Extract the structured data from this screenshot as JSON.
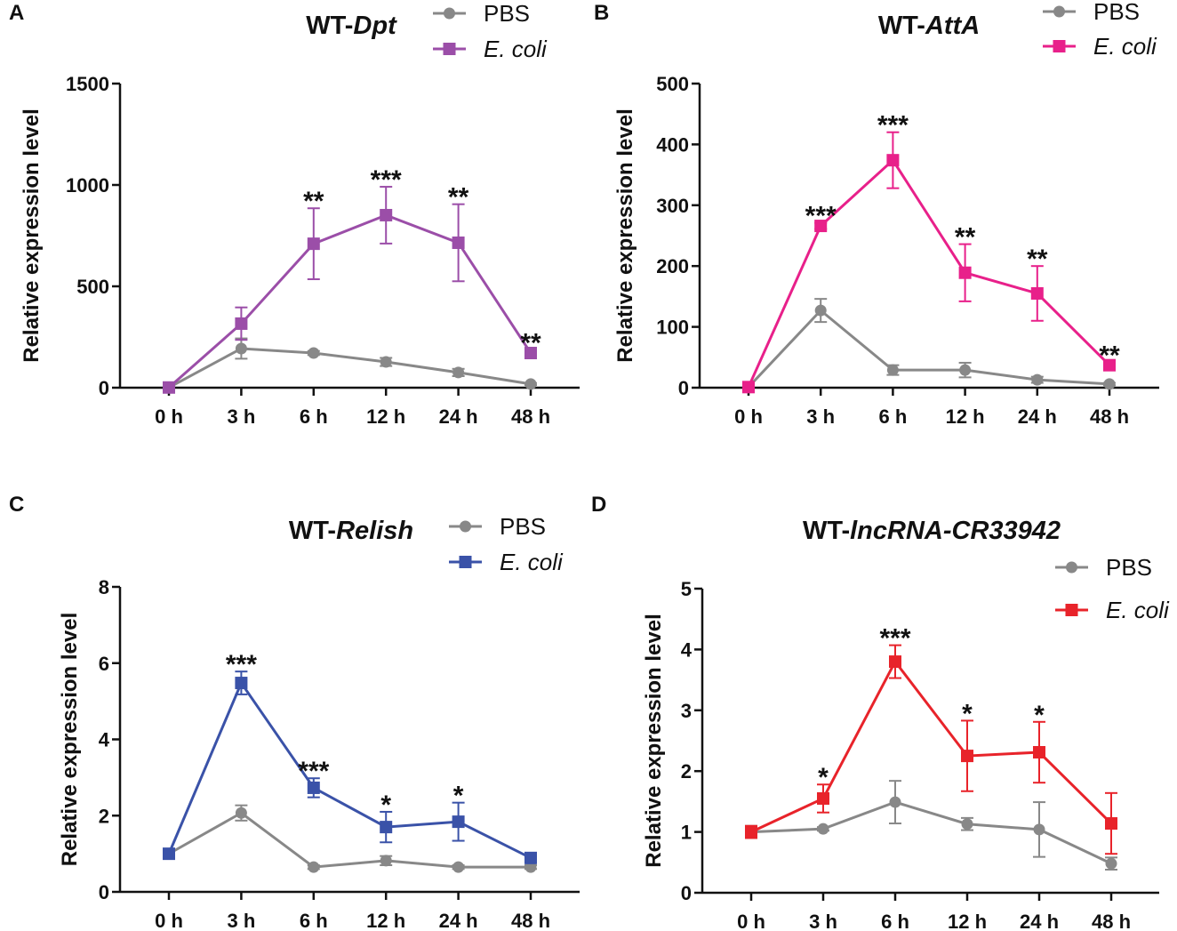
{
  "chart_data": [
    {
      "type": "line",
      "panel": "A",
      "title_prefix": "WT-",
      "title_gene": "Dpt",
      "ylabel": "Relative expression level",
      "ylim": [
        0,
        1500
      ],
      "yticks": [
        0,
        500,
        1000,
        1500
      ],
      "categories": [
        "0 h",
        "3 h",
        "6 h",
        "12 h",
        "24 h",
        "48 h"
      ],
      "series": [
        {
          "name": "PBS",
          "color": "#888888",
          "marker": "circle",
          "values": [
            1,
            193,
            171,
            127,
            75,
            18
          ],
          "errors": [
            0,
            50,
            10,
            20,
            18,
            5
          ]
        },
        {
          "name": "E. coli",
          "color": "#9b4ea8",
          "marker": "square",
          "values": [
            1,
            316,
            710,
            851,
            715,
            171
          ],
          "errors": [
            0,
            80,
            175,
            140,
            190,
            15
          ]
        }
      ],
      "significance": [
        "",
        "",
        "**",
        "***",
        "**",
        "**"
      ]
    },
    {
      "type": "line",
      "panel": "B",
      "title_prefix": "WT-",
      "title_gene": "AttA",
      "ylabel": "Relative expression level",
      "ylim": [
        0,
        500
      ],
      "yticks": [
        0,
        100,
        200,
        300,
        400,
        500
      ],
      "categories": [
        "0 h",
        "3 h",
        "6 h",
        "12 h",
        "24 h",
        "48 h"
      ],
      "series": [
        {
          "name": "PBS",
          "color": "#888888",
          "marker": "circle",
          "values": [
            1,
            127,
            29,
            29,
            13,
            6
          ],
          "errors": [
            0,
            19,
            8,
            12,
            5,
            2
          ]
        },
        {
          "name": "E. coli",
          "color": "#e8208a",
          "marker": "square",
          "values": [
            1,
            266,
            374,
            189,
            155,
            37
          ],
          "errors": [
            0,
            5,
            46,
            47,
            45,
            5
          ]
        }
      ],
      "significance": [
        "",
        "***",
        "***",
        "**",
        "**",
        "**"
      ]
    },
    {
      "type": "line",
      "panel": "C",
      "title_prefix": "WT-",
      "title_gene": "Relish",
      "ylabel": "Relative expression level",
      "ylim": [
        0,
        8
      ],
      "yticks": [
        0,
        2,
        4,
        6,
        8
      ],
      "categories": [
        "0 h",
        "3 h",
        "6 h",
        "12 h",
        "24 h",
        "48 h"
      ],
      "series": [
        {
          "name": "PBS",
          "color": "#888888",
          "marker": "circle",
          "values": [
            1.0,
            2.07,
            0.65,
            0.82,
            0.65,
            0.65
          ],
          "errors": [
            0.05,
            0.2,
            0.05,
            0.12,
            0.05,
            0.05
          ]
        },
        {
          "name": "E. coli",
          "color": "#3a52a8",
          "marker": "square",
          "values": [
            1.0,
            5.48,
            2.73,
            1.7,
            1.84,
            0.89
          ],
          "errors": [
            0.05,
            0.3,
            0.25,
            0.4,
            0.5,
            0.05
          ]
        }
      ],
      "significance": [
        "",
        "***",
        "***",
        "*",
        "*",
        ""
      ]
    },
    {
      "type": "line",
      "panel": "D",
      "title_prefix": "WT-",
      "title_gene": "lncRNA-CR33942",
      "ylabel": "Relative expression level",
      "ylim": [
        0,
        5
      ],
      "yticks": [
        0,
        1,
        2,
        3,
        4,
        5
      ],
      "categories": [
        "0 h",
        "3 h",
        "6 h",
        "12 h",
        "24 h",
        "48 h"
      ],
      "series": [
        {
          "name": "PBS",
          "color": "#888888",
          "marker": "circle",
          "values": [
            1.0,
            1.05,
            1.49,
            1.13,
            1.04,
            0.48
          ],
          "errors": [
            0.1,
            0.03,
            0.35,
            0.1,
            0.45,
            0.1
          ]
        },
        {
          "name": "E. coli",
          "color": "#e8232a",
          "marker": "square",
          "values": [
            1.0,
            1.55,
            3.8,
            2.25,
            2.31,
            1.14
          ],
          "errors": [
            0.1,
            0.23,
            0.27,
            0.58,
            0.5,
            0.5
          ]
        }
      ],
      "significance": [
        "",
        "*",
        "***",
        "*",
        "*",
        ""
      ]
    }
  ]
}
